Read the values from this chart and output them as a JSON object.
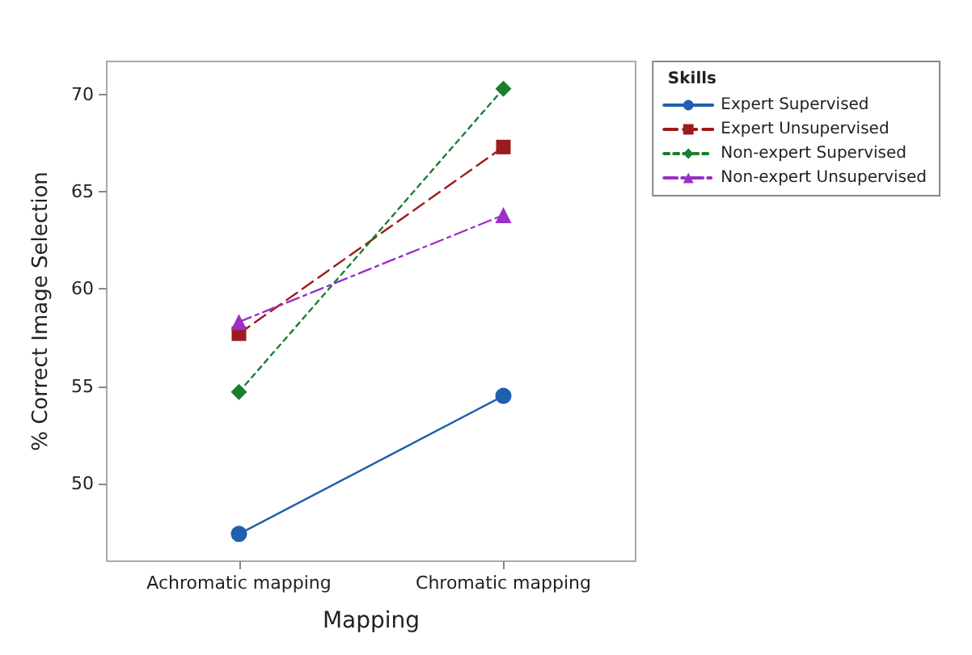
{
  "chart_data": {
    "type": "line",
    "xlabel": "Mapping",
    "ylabel": "% Correct Image Selection",
    "legend_title": "Skills",
    "categories": [
      "Achromatic mapping",
      "Chromatic mapping"
    ],
    "series": [
      {
        "name": "Expert Supervised",
        "color": "#1f5fae",
        "values": [
          47.4,
          54.5
        ],
        "marker": "circle",
        "line_style": "solid"
      },
      {
        "name": "Expert Unsupervised",
        "color": "#9b1c1c",
        "values": [
          57.7,
          67.3
        ],
        "marker": "square",
        "line_style": "dashed"
      },
      {
        "name": "Non-expert Supervised",
        "color": "#1a7f2e",
        "values": [
          54.7,
          70.3
        ],
        "marker": "diamond",
        "line_style": "dotted"
      },
      {
        "name": "Non-expert Unsupervised",
        "color": "#9b2fc7",
        "values": [
          58.3,
          63.8
        ],
        "marker": "triangle",
        "line_style": "dashdot"
      }
    ],
    "ylim": [
      46,
      71.7
    ],
    "yticks": [
      50,
      55,
      60,
      65,
      70
    ],
    "grid": false,
    "legend": "top right"
  }
}
